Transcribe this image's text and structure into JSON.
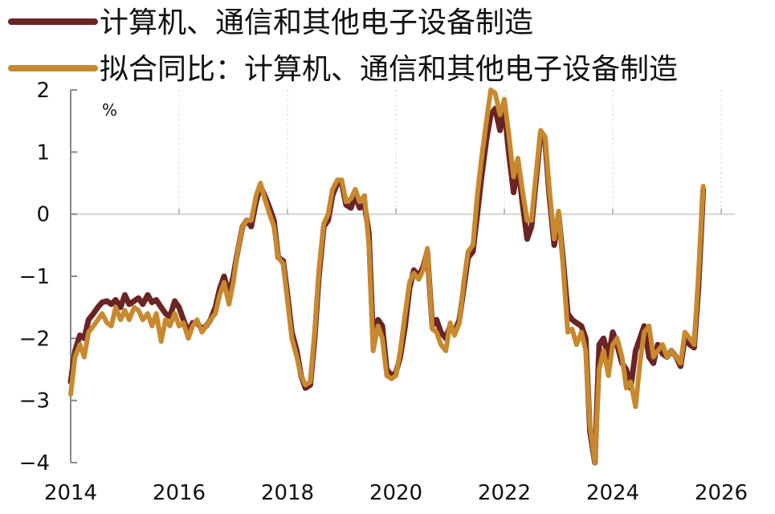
{
  "chart_data": {
    "type": "line",
    "title": "",
    "unit": "%",
    "xlabel": "",
    "ylabel": "",
    "xlim": [
      2014.0,
      2026.5
    ],
    "ylim": [
      -4,
      2
    ],
    "x_ticks": [
      "2014",
      "2016",
      "2018",
      "2020",
      "2022",
      "2024",
      "2026"
    ],
    "y_ticks": [
      "2",
      "1",
      "0",
      "−1",
      "−2",
      "−3",
      "−4"
    ],
    "grid": "vertical-dotted",
    "legend_position": "top-left",
    "series": [
      {
        "name": "计算机、通信和其他电子设备制造",
        "color": "#6b2424",
        "points": [
          [
            2014.0,
            -2.7
          ],
          [
            2014.08,
            -2.2
          ],
          [
            2014.17,
            -1.95
          ],
          [
            2014.25,
            -2.0
          ],
          [
            2014.33,
            -1.7
          ],
          [
            2014.42,
            -1.6
          ],
          [
            2014.5,
            -1.5
          ],
          [
            2014.58,
            -1.42
          ],
          [
            2014.67,
            -1.4
          ],
          [
            2014.75,
            -1.45
          ],
          [
            2014.83,
            -1.38
          ],
          [
            2014.92,
            -1.5
          ],
          [
            2015.0,
            -1.3
          ],
          [
            2015.08,
            -1.45
          ],
          [
            2015.17,
            -1.4
          ],
          [
            2015.25,
            -1.35
          ],
          [
            2015.33,
            -1.45
          ],
          [
            2015.42,
            -1.3
          ],
          [
            2015.5,
            -1.42
          ],
          [
            2015.58,
            -1.38
          ],
          [
            2015.67,
            -1.5
          ],
          [
            2015.75,
            -1.6
          ],
          [
            2015.83,
            -1.65
          ],
          [
            2015.92,
            -1.4
          ],
          [
            2016.0,
            -1.5
          ],
          [
            2016.08,
            -1.7
          ],
          [
            2016.17,
            -1.9
          ],
          [
            2016.25,
            -1.75
          ],
          [
            2016.33,
            -1.75
          ],
          [
            2016.42,
            -1.85
          ],
          [
            2016.5,
            -1.8
          ],
          [
            2016.58,
            -1.7
          ],
          [
            2016.67,
            -1.5
          ],
          [
            2016.75,
            -1.2
          ],
          [
            2016.83,
            -1.0
          ],
          [
            2016.92,
            -1.3
          ],
          [
            2017.0,
            -1.0
          ],
          [
            2017.08,
            -0.6
          ],
          [
            2017.17,
            -0.2
          ],
          [
            2017.25,
            -0.1
          ],
          [
            2017.33,
            -0.2
          ],
          [
            2017.42,
            0.2
          ],
          [
            2017.5,
            0.45
          ],
          [
            2017.58,
            0.3
          ],
          [
            2017.67,
            0.1
          ],
          [
            2017.75,
            -0.1
          ],
          [
            2017.83,
            -0.7
          ],
          [
            2017.92,
            -0.75
          ],
          [
            2018.0,
            -1.3
          ],
          [
            2018.08,
            -1.9
          ],
          [
            2018.17,
            -2.2
          ],
          [
            2018.25,
            -2.6
          ],
          [
            2018.33,
            -2.8
          ],
          [
            2018.42,
            -2.75
          ],
          [
            2018.5,
            -2.0
          ],
          [
            2018.58,
            -1.0
          ],
          [
            2018.67,
            -0.2
          ],
          [
            2018.75,
            -0.1
          ],
          [
            2018.83,
            0.3
          ],
          [
            2018.92,
            0.5
          ],
          [
            2019.0,
            0.5
          ],
          [
            2019.08,
            0.15
          ],
          [
            2019.17,
            0.1
          ],
          [
            2019.25,
            0.3
          ],
          [
            2019.33,
            0.1
          ],
          [
            2019.42,
            0.15
          ],
          [
            2019.5,
            -0.3
          ],
          [
            2019.58,
            -2.0
          ],
          [
            2019.67,
            -1.7
          ],
          [
            2019.75,
            -1.8
          ],
          [
            2019.83,
            -2.5
          ],
          [
            2019.92,
            -2.6
          ],
          [
            2020.0,
            -2.55
          ],
          [
            2020.08,
            -2.3
          ],
          [
            2020.17,
            -1.8
          ],
          [
            2020.25,
            -1.2
          ],
          [
            2020.33,
            -0.9
          ],
          [
            2020.42,
            -1.0
          ],
          [
            2020.5,
            -0.85
          ],
          [
            2020.58,
            -0.6
          ],
          [
            2020.67,
            -1.8
          ],
          [
            2020.75,
            -1.7
          ],
          [
            2020.83,
            -1.9
          ],
          [
            2020.92,
            -2.0
          ],
          [
            2021.0,
            -1.8
          ],
          [
            2021.08,
            -1.9
          ],
          [
            2021.17,
            -1.7
          ],
          [
            2021.25,
            -1.2
          ],
          [
            2021.33,
            -0.7
          ],
          [
            2021.42,
            -0.6
          ],
          [
            2021.5,
            0.0
          ],
          [
            2021.58,
            0.6
          ],
          [
            2021.67,
            1.2
          ],
          [
            2021.75,
            1.6
          ],
          [
            2021.83,
            1.7
          ],
          [
            2021.92,
            1.35
          ],
          [
            2022.0,
            1.7
          ],
          [
            2022.08,
            1.0
          ],
          [
            2022.17,
            0.35
          ],
          [
            2022.25,
            0.8
          ],
          [
            2022.33,
            0.2
          ],
          [
            2022.42,
            -0.4
          ],
          [
            2022.5,
            -0.2
          ],
          [
            2022.58,
            0.5
          ],
          [
            2022.67,
            1.3
          ],
          [
            2022.75,
            1.2
          ],
          [
            2022.83,
            0.3
          ],
          [
            2022.92,
            -0.5
          ],
          [
            2023.0,
            0.0
          ],
          [
            2023.08,
            -0.7
          ],
          [
            2023.17,
            -1.6
          ],
          [
            2023.25,
            -1.7
          ],
          [
            2023.33,
            -1.75
          ],
          [
            2023.42,
            -1.8
          ],
          [
            2023.5,
            -2.0
          ],
          [
            2023.58,
            -3.5
          ],
          [
            2023.67,
            -4.0
          ],
          [
            2023.75,
            -2.1
          ],
          [
            2023.83,
            -2.0
          ],
          [
            2023.92,
            -2.3
          ],
          [
            2024.0,
            -1.9
          ],
          [
            2024.08,
            -2.1
          ],
          [
            2024.17,
            -2.4
          ],
          [
            2024.25,
            -2.5
          ],
          [
            2024.33,
            -2.8
          ],
          [
            2024.42,
            -2.2
          ],
          [
            2024.5,
            -2.0
          ],
          [
            2024.58,
            -1.8
          ],
          [
            2024.67,
            -2.3
          ],
          [
            2024.75,
            -2.4
          ],
          [
            2024.83,
            -2.1
          ],
          [
            2024.92,
            -2.25
          ],
          [
            2025.0,
            -2.3
          ],
          [
            2025.08,
            -2.2
          ],
          [
            2025.17,
            -2.3
          ],
          [
            2025.25,
            -2.45
          ],
          [
            2025.33,
            -2.0
          ],
          [
            2025.42,
            -2.1
          ],
          [
            2025.5,
            -2.15
          ],
          [
            2025.58,
            -1.2
          ],
          [
            2025.67,
            0.4
          ]
        ]
      },
      {
        "name": "拟合同比：计算机、通信和其他电子设备制造",
        "color": "#c8892e",
        "points": [
          [
            2014.0,
            -2.9
          ],
          [
            2014.08,
            -2.3
          ],
          [
            2014.17,
            -2.1
          ],
          [
            2014.25,
            -2.3
          ],
          [
            2014.33,
            -1.9
          ],
          [
            2014.42,
            -1.8
          ],
          [
            2014.5,
            -1.7
          ],
          [
            2014.58,
            -1.6
          ],
          [
            2014.67,
            -1.75
          ],
          [
            2014.75,
            -1.8
          ],
          [
            2014.83,
            -1.5
          ],
          [
            2014.92,
            -1.7
          ],
          [
            2015.0,
            -1.55
          ],
          [
            2015.08,
            -1.7
          ],
          [
            2015.17,
            -1.5
          ],
          [
            2015.25,
            -1.55
          ],
          [
            2015.33,
            -1.7
          ],
          [
            2015.42,
            -1.6
          ],
          [
            2015.5,
            -1.8
          ],
          [
            2015.58,
            -1.6
          ],
          [
            2015.67,
            -2.05
          ],
          [
            2015.75,
            -1.7
          ],
          [
            2015.83,
            -1.8
          ],
          [
            2015.92,
            -1.6
          ],
          [
            2016.0,
            -1.8
          ],
          [
            2016.08,
            -1.75
          ],
          [
            2016.17,
            -2.0
          ],
          [
            2016.25,
            -1.8
          ],
          [
            2016.33,
            -1.7
          ],
          [
            2016.42,
            -1.9
          ],
          [
            2016.5,
            -1.8
          ],
          [
            2016.58,
            -1.7
          ],
          [
            2016.67,
            -1.6
          ],
          [
            2016.75,
            -1.3
          ],
          [
            2016.83,
            -1.1
          ],
          [
            2016.92,
            -1.45
          ],
          [
            2017.0,
            -1.1
          ],
          [
            2017.08,
            -0.6
          ],
          [
            2017.17,
            -0.2
          ],
          [
            2017.25,
            -0.1
          ],
          [
            2017.33,
            -0.1
          ],
          [
            2017.42,
            0.3
          ],
          [
            2017.5,
            0.5
          ],
          [
            2017.58,
            0.25
          ],
          [
            2017.67,
            0.0
          ],
          [
            2017.75,
            -0.2
          ],
          [
            2017.83,
            -0.7
          ],
          [
            2017.92,
            -0.8
          ],
          [
            2018.0,
            -1.4
          ],
          [
            2018.08,
            -2.0
          ],
          [
            2018.17,
            -2.3
          ],
          [
            2018.25,
            -2.6
          ],
          [
            2018.33,
            -2.75
          ],
          [
            2018.42,
            -2.7
          ],
          [
            2018.5,
            -1.9
          ],
          [
            2018.58,
            -0.9
          ],
          [
            2018.67,
            -0.15
          ],
          [
            2018.75,
            0.0
          ],
          [
            2018.83,
            0.4
          ],
          [
            2018.92,
            0.55
          ],
          [
            2019.0,
            0.55
          ],
          [
            2019.08,
            0.2
          ],
          [
            2019.17,
            0.25
          ],
          [
            2019.25,
            0.4
          ],
          [
            2019.33,
            0.2
          ],
          [
            2019.42,
            0.3
          ],
          [
            2019.5,
            -0.5
          ],
          [
            2019.58,
            -2.2
          ],
          [
            2019.67,
            -1.8
          ],
          [
            2019.75,
            -2.0
          ],
          [
            2019.83,
            -2.6
          ],
          [
            2019.92,
            -2.65
          ],
          [
            2020.0,
            -2.6
          ],
          [
            2020.08,
            -2.2
          ],
          [
            2020.17,
            -1.6
          ],
          [
            2020.25,
            -1.1
          ],
          [
            2020.33,
            -0.95
          ],
          [
            2020.42,
            -1.05
          ],
          [
            2020.5,
            -0.9
          ],
          [
            2020.58,
            -0.55
          ],
          [
            2020.67,
            -1.85
          ],
          [
            2020.75,
            -1.9
          ],
          [
            2020.83,
            -2.1
          ],
          [
            2020.92,
            -2.2
          ],
          [
            2021.0,
            -1.75
          ],
          [
            2021.08,
            -1.95
          ],
          [
            2021.17,
            -1.75
          ],
          [
            2021.25,
            -1.1
          ],
          [
            2021.33,
            -0.6
          ],
          [
            2021.42,
            -0.5
          ],
          [
            2021.5,
            0.3
          ],
          [
            2021.58,
            0.9
          ],
          [
            2021.67,
            1.5
          ],
          [
            2021.75,
            2.0
          ],
          [
            2021.83,
            1.95
          ],
          [
            2021.92,
            1.6
          ],
          [
            2022.0,
            1.85
          ],
          [
            2022.08,
            1.3
          ],
          [
            2022.17,
            0.6
          ],
          [
            2022.25,
            0.9
          ],
          [
            2022.33,
            0.4
          ],
          [
            2022.42,
            -0.1
          ],
          [
            2022.5,
            -0.1
          ],
          [
            2022.58,
            0.6
          ],
          [
            2022.67,
            1.35
          ],
          [
            2022.75,
            1.25
          ],
          [
            2022.83,
            0.4
          ],
          [
            2022.92,
            -0.4
          ],
          [
            2023.0,
            0.05
          ],
          [
            2023.08,
            -0.8
          ],
          [
            2023.17,
            -1.9
          ],
          [
            2023.25,
            -1.85
          ],
          [
            2023.33,
            -2.1
          ],
          [
            2023.42,
            -1.9
          ],
          [
            2023.5,
            -2.2
          ],
          [
            2023.58,
            -3.4
          ],
          [
            2023.67,
            -4.0
          ],
          [
            2023.75,
            -2.5
          ],
          [
            2023.83,
            -2.2
          ],
          [
            2023.92,
            -2.6
          ],
          [
            2024.0,
            -2.1
          ],
          [
            2024.08,
            -2.0
          ],
          [
            2024.17,
            -2.3
          ],
          [
            2024.25,
            -2.8
          ],
          [
            2024.33,
            -2.7
          ],
          [
            2024.42,
            -3.1
          ],
          [
            2024.5,
            -2.4
          ],
          [
            2024.58,
            -1.9
          ],
          [
            2024.67,
            -1.8
          ],
          [
            2024.75,
            -2.3
          ],
          [
            2024.83,
            -2.2
          ],
          [
            2024.92,
            -2.1
          ],
          [
            2025.0,
            -2.3
          ],
          [
            2025.08,
            -2.2
          ],
          [
            2025.17,
            -2.3
          ],
          [
            2025.25,
            -2.4
          ],
          [
            2025.33,
            -1.9
          ],
          [
            2025.42,
            -2.0
          ],
          [
            2025.5,
            -2.1
          ],
          [
            2025.58,
            -1.0
          ],
          [
            2025.67,
            0.45
          ]
        ]
      }
    ]
  }
}
